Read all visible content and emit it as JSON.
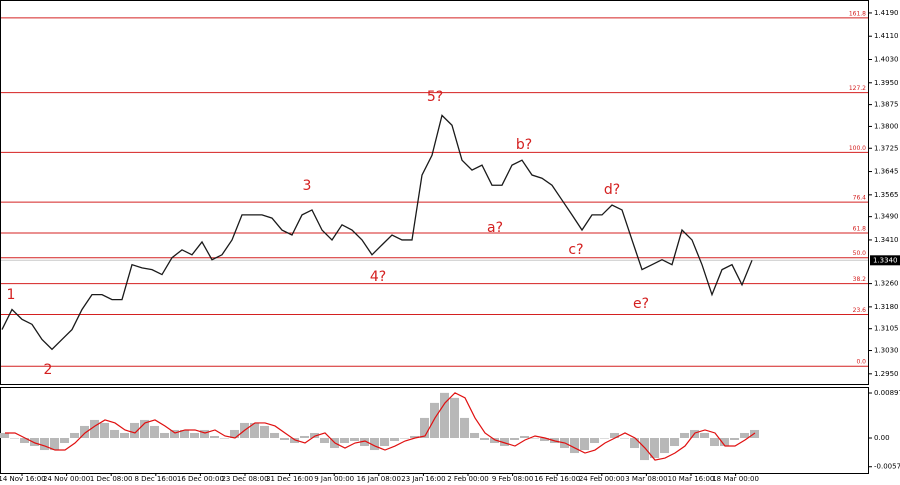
{
  "chart_data": {
    "type": "line",
    "series": [
      {
        "name": "Price",
        "color": "#1a1a1a",
        "values": [
          1.3102,
          1.3171,
          1.3137,
          1.312,
          1.3068,
          1.3034,
          1.3068,
          1.3102,
          1.3171,
          1.3222,
          1.3222,
          1.3205,
          1.3205,
          1.3325,
          1.3314,
          1.3308,
          1.3291,
          1.3349,
          1.3376,
          1.3359,
          1.3403,
          1.3342,
          1.3359,
          1.341,
          1.3496,
          1.3496,
          1.3496,
          1.3485,
          1.3444,
          1.3427,
          1.3496,
          1.3513,
          1.3444,
          1.341,
          1.3462,
          1.3444,
          1.341,
          1.3359,
          1.3393,
          1.3427,
          1.341,
          1.341,
          1.3633,
          1.3701,
          1.3838,
          1.3804,
          1.3684,
          1.365,
          1.3667,
          1.3598,
          1.3598,
          1.3667,
          1.3684,
          1.3633,
          1.3622,
          1.3598,
          1.3547,
          1.3496,
          1.3444,
          1.3496,
          1.3496,
          1.353,
          1.3513,
          1.341,
          1.3308,
          1.3325,
          1.3342,
          1.3325,
          1.3444,
          1.341,
          1.3325,
          1.3222,
          1.3308,
          1.3325,
          1.3256,
          1.334
        ]
      }
    ],
    "ylim": [
      1.2915,
      1.4231
    ],
    "yticks": [
      {
        "value": 1.419,
        "label": "1.4190"
      },
      {
        "value": 1.411,
        "label": "1.4110"
      },
      {
        "value": 1.403,
        "label": "1.4030"
      },
      {
        "value": 1.395,
        "label": "1.3950"
      },
      {
        "value": 1.3875,
        "label": "1.3875"
      },
      {
        "value": 1.38,
        "label": "1.3800"
      },
      {
        "value": 1.3725,
        "label": "1.3725"
      },
      {
        "value": 1.3645,
        "label": "1.3645"
      },
      {
        "value": 1.3565,
        "label": "1.3565"
      },
      {
        "value": 1.349,
        "label": "1.3490"
      },
      {
        "value": 1.341,
        "label": "1.3410"
      },
      {
        "value": 1.326,
        "label": "1.3260"
      },
      {
        "value": 1.318,
        "label": "1.3180"
      },
      {
        "value": 1.3105,
        "label": "1.3105"
      },
      {
        "value": 1.303,
        "label": "1.3030"
      },
      {
        "value": 1.295,
        "label": "1.2950"
      }
    ],
    "current_price": {
      "value": 1.334,
      "label": "1.3340"
    },
    "fib_levels": [
      {
        "value": 1.4173,
        "label": "161.8"
      },
      {
        "value": 1.3916,
        "label": "127.2"
      },
      {
        "value": 1.3711,
        "label": "100.0"
      },
      {
        "value": 1.354,
        "label": "76.4"
      },
      {
        "value": 1.3434,
        "label": "61.8"
      },
      {
        "value": 1.3349,
        "label": "50.0"
      },
      {
        "value": 1.326,
        "label": "38.2"
      },
      {
        "value": 1.3154,
        "label": "23.6"
      },
      {
        "value": 1.2976,
        "label": "0.0"
      }
    ],
    "fib_color": "#d42020",
    "annotations": [
      "1",
      "2",
      "3",
      "4?",
      "5?",
      "a?",
      "b?",
      "c?",
      "d?",
      "e?"
    ],
    "x_labels": [
      "14 Nov 16:00",
      "24 Nov 00:00",
      "1 Dec 08:00",
      "8 Dec 16:00",
      "16 Dec 00:00",
      "23 Dec 08:00",
      "31 Dec 16:00",
      "9 Jan 00:00",
      "16 Jan 08:00",
      "23 Jan 16:00",
      "2 Feb 00:00",
      "9 Feb 08:00",
      "16 Feb 16:00",
      "24 Feb 00:00",
      "3 Mar 08:00",
      "10 Mar 16:00",
      "18 Mar 00:00"
    ],
    "macd": {
      "histogram": {
        "color": "#b8b8b8",
        "values": [
          0.001,
          0,
          -0.001,
          -0.0016,
          -0.0024,
          -0.0024,
          -0.001,
          0.001,
          0.0024,
          0.0036,
          0.003,
          0.0016,
          0.001,
          0.003,
          0.0036,
          0.0024,
          0.001,
          0.0016,
          0.0016,
          0.001,
          0.0016,
          0.0004,
          0,
          0.0016,
          0.003,
          0.003,
          0.0024,
          0.001,
          -0.0004,
          -0.001,
          0.0004,
          0.001,
          -0.001,
          -0.002,
          -0.001,
          -0.0006,
          -0.0016,
          -0.0024,
          -0.0016,
          -0.0006,
          0,
          0.0004,
          0.004,
          0.007,
          0.009,
          0.008,
          0.004,
          0.001,
          -0.0004,
          -0.001,
          -0.0016,
          -0.0004,
          0.0004,
          0,
          -0.0006,
          -0.001,
          -0.002,
          -0.003,
          -0.0024,
          -0.001,
          0,
          0.001,
          0,
          -0.002,
          -0.0044,
          -0.004,
          -0.003,
          -0.0016,
          0.001,
          0.0016,
          0.001,
          -0.0016,
          -0.0016,
          -0.0004,
          0.001,
          0.0016
        ]
      },
      "signal": {
        "color": "#e01010",
        "values": [
          0.001,
          0.001,
          0,
          -0.001,
          -0.0016,
          -0.0024,
          -0.0024,
          -0.001,
          0.001,
          0.0024,
          0.0036,
          0.003,
          0.0016,
          0.001,
          0.003,
          0.0036,
          0.0024,
          0.001,
          0.0016,
          0.0016,
          0.001,
          0.0016,
          0.0004,
          0,
          0.0016,
          0.003,
          0.003,
          0.0024,
          0.001,
          -0.0004,
          -0.001,
          0.0004,
          0.001,
          -0.001,
          -0.002,
          -0.001,
          -0.0006,
          -0.0016,
          -0.0024,
          -0.0016,
          -0.0006,
          0,
          0.0004,
          0.004,
          0.007,
          0.009,
          0.008,
          0.004,
          0.001,
          -0.0004,
          -0.001,
          -0.0016,
          -0.0004,
          0.0004,
          0,
          -0.0006,
          -0.001,
          -0.002,
          -0.003,
          -0.0024,
          -0.001,
          0,
          0.001,
          0,
          -0.002,
          -0.0044,
          -0.004,
          -0.003,
          -0.0016,
          0.001,
          0.0016,
          0.001,
          -0.0016,
          -0.0016,
          -0.0004,
          0.001
        ]
      },
      "ylim": [
        -0.00698,
        0.00997
      ],
      "yticks": [
        0.00897,
        {
          "value": 0,
          "label": "0.00"
        },
        -0.00573
      ]
    }
  }
}
